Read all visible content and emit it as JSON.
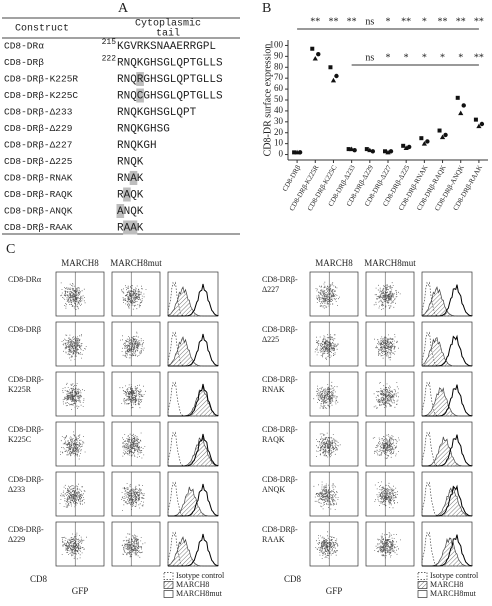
{
  "panel_a": {
    "label": "A",
    "header": [
      "Construct",
      [
        "Cytoplasmic",
        "tail"
      ]
    ],
    "rows": [
      {
        "construct": "CD8-DRα",
        "start": 215,
        "tail": [
          {
            "t": "KGVRKSNAAERRGPL"
          }
        ]
      },
      {
        "construct": "CD8-DRβ",
        "start": 222,
        "tail": [
          {
            "t": "RNQKGHSGLQPTGLLS"
          }
        ]
      },
      {
        "construct": "CD8-DRβ-K225R",
        "tail": [
          {
            "t": "RNQ"
          },
          {
            "t": "R",
            "hl": true
          },
          {
            "t": "GHSGLQPTGLLS"
          }
        ]
      },
      {
        "construct": "CD8-DRβ-K225C",
        "tail": [
          {
            "t": "RNQ"
          },
          {
            "t": "C",
            "hl": true
          },
          {
            "t": "GHSGLQPTGLLS"
          }
        ]
      },
      {
        "construct": "CD8-DRβ-Δ233",
        "tail": [
          {
            "t": "RNQKGHSGLQPT"
          }
        ]
      },
      {
        "construct": "CD8-DRβ-Δ229",
        "tail": [
          {
            "t": "RNQKGHSG"
          }
        ]
      },
      {
        "construct": "CD8-DRβ-Δ227",
        "tail": [
          {
            "t": "RNQKGH"
          }
        ]
      },
      {
        "construct": "CD8-DRβ-Δ225",
        "tail": [
          {
            "t": "RNQK"
          }
        ]
      },
      {
        "construct": "CD8-DRβ-RNAK",
        "tail": [
          {
            "t": "RN"
          },
          {
            "t": "A",
            "hl": true
          },
          {
            "t": "K"
          }
        ]
      },
      {
        "construct": "CD8-DRβ-RAQK",
        "tail": [
          {
            "t": "R"
          },
          {
            "t": "A",
            "hl": true
          },
          {
            "t": "QK"
          }
        ]
      },
      {
        "construct": "CD8-DRβ-ANQK",
        "tail": [
          {
            "t": "A",
            "hl": true
          },
          {
            "t": "NQK"
          }
        ]
      },
      {
        "construct": "CD8-DRβ-RAAK",
        "tail": [
          {
            "t": "R"
          },
          {
            "t": "AA",
            "hl": true
          },
          {
            "t": "K"
          }
        ]
      }
    ]
  },
  "chart_data": {
    "type": "scatter",
    "label": "B",
    "ylabel": "CD8-DR surface expression",
    "categories": [
      "CD8-DRβ",
      "CD8-DRβ-K225R",
      "CD8-DRβ-K225C",
      "CD8-DRβ-Δ233",
      "CD8-DRβ-Δ229",
      "CD8-DRβ-Δ227",
      "CD8-DRβ-Δ225",
      "CD8-DRβ-RNAK",
      "CD8-DRβ-RAQK",
      "CD8-DRβ-ANQK",
      "CD8-DRβ-RAAK"
    ],
    "series": [
      {
        "marker": "square",
        "color": "#111",
        "values": [
          2,
          97,
          80,
          5,
          5,
          3,
          8,
          15,
          22,
          52,
          32
        ]
      },
      {
        "marker": "circle",
        "color": "#111",
        "values": [
          2,
          92,
          72,
          4,
          3,
          3,
          7,
          12,
          18,
          45,
          28
        ]
      },
      {
        "marker": "triangle",
        "color": "#111",
        "values": [
          2,
          88,
          68,
          5,
          4,
          2,
          6,
          10,
          16,
          38,
          26
        ]
      }
    ],
    "significance": [
      [
        null,
        "**",
        "**",
        "**",
        "ns",
        "*",
        "**",
        "*",
        "**",
        "**",
        "**"
      ],
      [
        null,
        null,
        null,
        null,
        "ns",
        "*",
        "*",
        "*",
        "*",
        "*",
        "**"
      ]
    ],
    "ylim": [
      -5,
      105
    ],
    "yticks": [
      0,
      10,
      20,
      30,
      40,
      50,
      60,
      70,
      80,
      90,
      100
    ]
  },
  "panel_c": {
    "label": "C",
    "columns": [
      "MARCH8",
      "MARCH8mut"
    ],
    "left_rows": [
      [
        "CD8-DRα"
      ],
      [
        "CD8-DRβ"
      ],
      [
        "CD8-DRβ-",
        "K225R"
      ],
      [
        "CD8-DRβ-",
        "K225C"
      ],
      [
        "CD8-DRβ-",
        "Δ233"
      ],
      [
        "CD8-DRβ-",
        "Δ229"
      ]
    ],
    "right_rows": [
      [
        "CD8-DRβ-",
        "Δ227"
      ],
      [
        "CD8-DRβ-",
        "Δ225"
      ],
      [
        "CD8-DRβ-",
        "RNAK"
      ],
      [
        "CD8-DRβ-",
        "RAQK"
      ],
      [
        "CD8-DRβ-",
        "ANQK"
      ],
      [
        "CD8-DRβ-",
        "RAAK"
      ]
    ],
    "yaxis": "CD8",
    "xaxis": "GFP",
    "legend": [
      "Isotype control",
      "MARCH8",
      "MARCH8mut"
    ]
  }
}
